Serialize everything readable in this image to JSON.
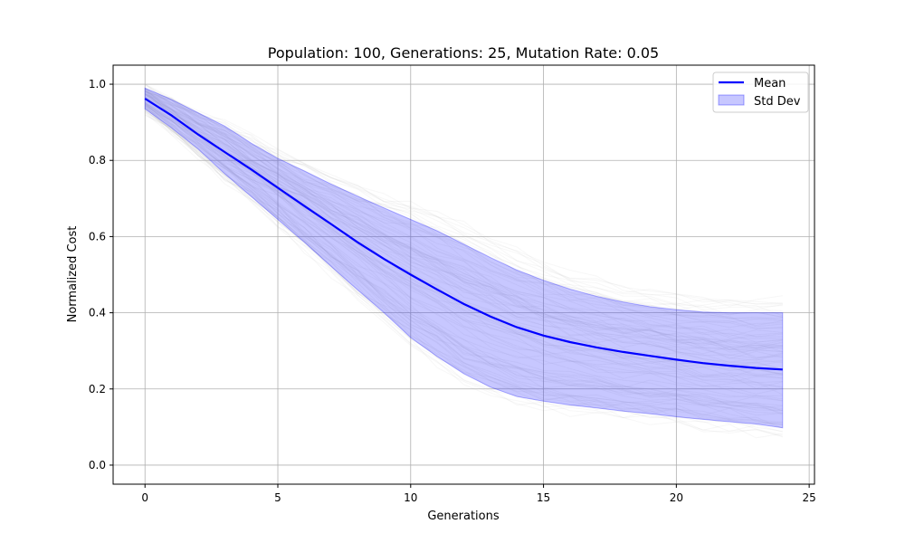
{
  "chart_data": {
    "type": "line",
    "title": "Population: 100, Generations: 25, Mutation Rate: 0.05",
    "xlabel": "Generations",
    "ylabel": "Normalized Cost",
    "xlim": [
      -1.2,
      25.2
    ],
    "ylim": [
      -0.05,
      1.05
    ],
    "xticks": [
      0,
      5,
      10,
      15,
      20,
      25
    ],
    "yticks": [
      0.0,
      0.2,
      0.4,
      0.6,
      0.8,
      1.0
    ],
    "x_tick_labels": [
      "0",
      "5",
      "10",
      "15",
      "20",
      "25"
    ],
    "y_tick_labels": [
      "0.0",
      "0.2",
      "0.4",
      "0.6",
      "0.8",
      "1.0"
    ],
    "grid": true,
    "legend_position": "top-right",
    "legend": [
      "Mean",
      "Std Dev"
    ],
    "x": [
      0,
      1,
      2,
      3,
      4,
      5,
      6,
      7,
      8,
      9,
      10,
      11,
      12,
      13,
      14,
      15,
      16,
      17,
      18,
      19,
      20,
      21,
      22,
      23,
      24
    ],
    "series": [
      {
        "name": "Mean",
        "color": "#0000ff",
        "values": [
          0.962,
          0.918,
          0.868,
          0.822,
          0.776,
          0.728,
          0.68,
          0.633,
          0.585,
          0.541,
          0.5,
          0.461,
          0.423,
          0.39,
          0.362,
          0.34,
          0.323,
          0.309,
          0.297,
          0.287,
          0.277,
          0.268,
          0.261,
          0.255,
          0.251
        ]
      },
      {
        "name": "Std Dev",
        "type": "band",
        "color": "#0000ff",
        "opacity": 0.22,
        "upper": [
          0.99,
          0.96,
          0.925,
          0.89,
          0.845,
          0.805,
          0.772,
          0.738,
          0.706,
          0.675,
          0.645,
          0.615,
          0.58,
          0.545,
          0.512,
          0.485,
          0.462,
          0.443,
          0.428,
          0.416,
          0.408,
          0.402,
          0.4,
          0.4,
          0.4
        ],
        "lower": [
          0.935,
          0.885,
          0.83,
          0.765,
          0.705,
          0.645,
          0.585,
          0.522,
          0.46,
          0.4,
          0.335,
          0.285,
          0.24,
          0.205,
          0.18,
          0.168,
          0.158,
          0.15,
          0.142,
          0.135,
          0.127,
          0.12,
          0.114,
          0.108,
          0.098
        ]
      }
    ],
    "background_trace_color": "#bbbbbb"
  }
}
